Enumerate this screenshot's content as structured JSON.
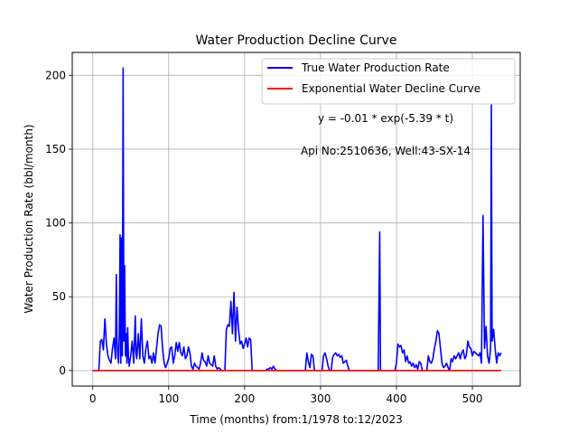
{
  "chart_data": {
    "type": "line",
    "title": "Water Production Decline Curve",
    "xlabel": "Time (months) from:1/1978 to:12/2023",
    "ylabel": "Water Production Rate (bbl/month)",
    "xlim": [
      -27,
      563
    ],
    "ylim": [
      -10.5,
      215.5
    ],
    "xticks": [
      0,
      100,
      200,
      300,
      400,
      500
    ],
    "yticks": [
      0,
      50,
      100,
      150,
      200
    ],
    "grid": true,
    "legend_position": "top-right",
    "annotations": [
      "y = -0.01 * exp(-5.39 * t)",
      "Api No:2510636, Well:43-SX-14"
    ],
    "series": [
      {
        "name": "True Water Production Rate",
        "color": "#0000ff",
        "points": [
          [
            0,
            0
          ],
          [
            5,
            0
          ],
          [
            8,
            0
          ],
          [
            10,
            20
          ],
          [
            12,
            21
          ],
          [
            14,
            14
          ],
          [
            16,
            35
          ],
          [
            18,
            18
          ],
          [
            20,
            10
          ],
          [
            22,
            7
          ],
          [
            24,
            5
          ],
          [
            26,
            15
          ],
          [
            28,
            22
          ],
          [
            30,
            8
          ],
          [
            31,
            65
          ],
          [
            32,
            20
          ],
          [
            33,
            10
          ],
          [
            34,
            5
          ],
          [
            35,
            25
          ],
          [
            36,
            92
          ],
          [
            37,
            5
          ],
          [
            38,
            90
          ],
          [
            39,
            10
          ],
          [
            40,
            205
          ],
          [
            41,
            20
          ],
          [
            42,
            71
          ],
          [
            43,
            10
          ],
          [
            44,
            25
          ],
          [
            45,
            5
          ],
          [
            46,
            29
          ],
          [
            47,
            10
          ],
          [
            48,
            3
          ],
          [
            50,
            10
          ],
          [
            52,
            20
          ],
          [
            54,
            5
          ],
          [
            56,
            37
          ],
          [
            57,
            12
          ],
          [
            58,
            8
          ],
          [
            60,
            25
          ],
          [
            62,
            8
          ],
          [
            64,
            35
          ],
          [
            66,
            10
          ],
          [
            68,
            5
          ],
          [
            70,
            15
          ],
          [
            72,
            20
          ],
          [
            74,
            8
          ],
          [
            76,
            10
          ],
          [
            78,
            5
          ],
          [
            80,
            12
          ],
          [
            82,
            5
          ],
          [
            84,
            15
          ],
          [
            86,
            25
          ],
          [
            88,
            31
          ],
          [
            90,
            30
          ],
          [
            92,
            15
          ],
          [
            94,
            5
          ],
          [
            96,
            2
          ],
          [
            98,
            5
          ],
          [
            100,
            8
          ],
          [
            102,
            15
          ],
          [
            104,
            16
          ],
          [
            106,
            5
          ],
          [
            108,
            10
          ],
          [
            110,
            19
          ],
          [
            112,
            13
          ],
          [
            114,
            19
          ],
          [
            116,
            12
          ],
          [
            118,
            10
          ],
          [
            120,
            16
          ],
          [
            122,
            8
          ],
          [
            124,
            10
          ],
          [
            126,
            16
          ],
          [
            128,
            12
          ],
          [
            130,
            3
          ],
          [
            132,
            1
          ],
          [
            134,
            5
          ],
          [
            136,
            3
          ],
          [
            138,
            2
          ],
          [
            140,
            1
          ],
          [
            142,
            5
          ],
          [
            144,
            12
          ],
          [
            146,
            7
          ],
          [
            148,
            6
          ],
          [
            150,
            3
          ],
          [
            152,
            10
          ],
          [
            154,
            5
          ],
          [
            156,
            4
          ],
          [
            158,
            3
          ],
          [
            160,
            10
          ],
          [
            162,
            3
          ],
          [
            164,
            1
          ],
          [
            166,
            2
          ],
          [
            168,
            1
          ],
          [
            170,
            0
          ],
          [
            174,
            0
          ],
          [
            176,
            28
          ],
          [
            178,
            31
          ],
          [
            180,
            30
          ],
          [
            182,
            47
          ],
          [
            184,
            25
          ],
          [
            186,
            53
          ],
          [
            188,
            20
          ],
          [
            190,
            43
          ],
          [
            192,
            28
          ],
          [
            194,
            18
          ],
          [
            196,
            20
          ],
          [
            198,
            15
          ],
          [
            200,
            18
          ],
          [
            202,
            22
          ],
          [
            204,
            16
          ],
          [
            206,
            22
          ],
          [
            208,
            21
          ],
          [
            210,
            0
          ],
          [
            228,
            0
          ],
          [
            230,
            1
          ],
          [
            232,
            1
          ],
          [
            234,
            2
          ],
          [
            236,
            1
          ],
          [
            238,
            3
          ],
          [
            240,
            1
          ],
          [
            242,
            0
          ],
          [
            280,
            0
          ],
          [
            282,
            12
          ],
          [
            284,
            6
          ],
          [
            286,
            2
          ],
          [
            288,
            11
          ],
          [
            290,
            10
          ],
          [
            292,
            0
          ],
          [
            302,
            0
          ],
          [
            304,
            10
          ],
          [
            306,
            12
          ],
          [
            308,
            8
          ],
          [
            310,
            3
          ],
          [
            312,
            0
          ],
          [
            314,
            0
          ],
          [
            316,
            9
          ],
          [
            318,
            11
          ],
          [
            320,
            12
          ],
          [
            322,
            10
          ],
          [
            324,
            11
          ],
          [
            326,
            9
          ],
          [
            328,
            10
          ],
          [
            330,
            5
          ],
          [
            332,
            6
          ],
          [
            334,
            7
          ],
          [
            336,
            3
          ],
          [
            338,
            0
          ],
          [
            376,
            0
          ],
          [
            378,
            94
          ],
          [
            379,
            0
          ],
          [
            398,
            0
          ],
          [
            400,
            5
          ],
          [
            402,
            18
          ],
          [
            404,
            16
          ],
          [
            406,
            17
          ],
          [
            408,
            12
          ],
          [
            410,
            14
          ],
          [
            412,
            6
          ],
          [
            414,
            10
          ],
          [
            416,
            5
          ],
          [
            418,
            6
          ],
          [
            420,
            3
          ],
          [
            422,
            5
          ],
          [
            424,
            2
          ],
          [
            426,
            4
          ],
          [
            428,
            1
          ],
          [
            430,
            6
          ],
          [
            432,
            5
          ],
          [
            434,
            0
          ],
          [
            440,
            0
          ],
          [
            442,
            10
          ],
          [
            444,
            6
          ],
          [
            446,
            5
          ],
          [
            448,
            8
          ],
          [
            450,
            15
          ],
          [
            452,
            20
          ],
          [
            454,
            27
          ],
          [
            456,
            25
          ],
          [
            458,
            15
          ],
          [
            460,
            5
          ],
          [
            462,
            2
          ],
          [
            464,
            3
          ],
          [
            466,
            5
          ],
          [
            468,
            2
          ],
          [
            470,
            0
          ],
          [
            472,
            8
          ],
          [
            474,
            6
          ],
          [
            476,
            10
          ],
          [
            478,
            8
          ],
          [
            480,
            10
          ],
          [
            482,
            12
          ],
          [
            484,
            8
          ],
          [
            486,
            12
          ],
          [
            488,
            14
          ],
          [
            490,
            8
          ],
          [
            492,
            10
          ],
          [
            494,
            20
          ],
          [
            496,
            16
          ],
          [
            498,
            15
          ],
          [
            500,
            10
          ],
          [
            502,
            13
          ],
          [
            504,
            12
          ],
          [
            506,
            11
          ],
          [
            508,
            10
          ],
          [
            510,
            12
          ],
          [
            512,
            5
          ],
          [
            514,
            105
          ],
          [
            516,
            15
          ],
          [
            518,
            30
          ],
          [
            520,
            10
          ],
          [
            522,
            5
          ],
          [
            524,
            15
          ],
          [
            525,
            180
          ],
          [
            526,
            20
          ],
          [
            528,
            28
          ],
          [
            530,
            15
          ],
          [
            532,
            5
          ],
          [
            534,
            12
          ],
          [
            536,
            10
          ],
          [
            538,
            12
          ]
        ]
      },
      {
        "name": "Exponential Water Decline Curve",
        "color": "#ff0000",
        "points": [
          [
            0,
            0
          ],
          [
            538,
            0
          ]
        ]
      }
    ]
  }
}
